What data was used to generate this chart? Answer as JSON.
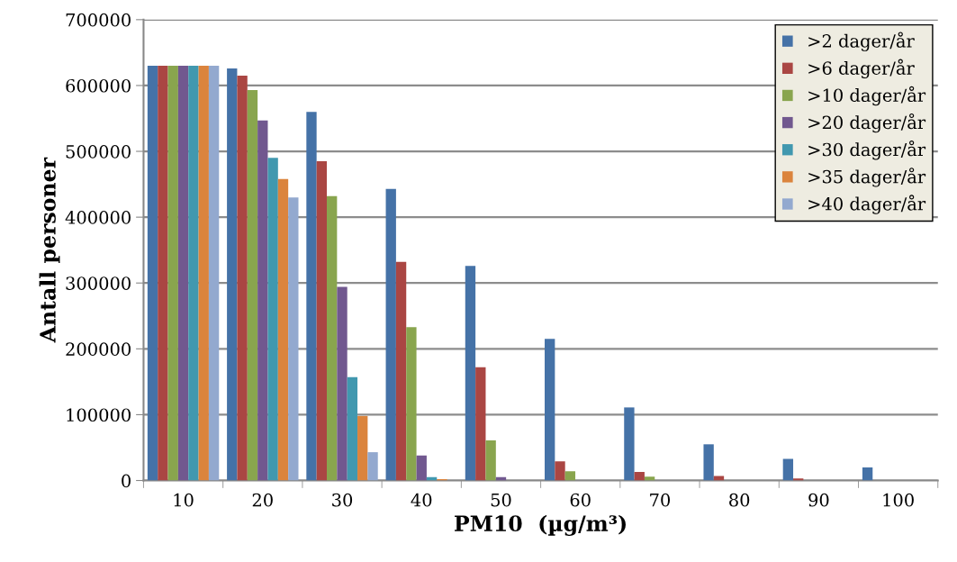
{
  "chart_data": {
    "type": "bar",
    "xlabel": "PM10  (µg/m³)",
    "ylabel": "Antall personer",
    "categories": [
      "10",
      "20",
      "30",
      "40",
      "50",
      "60",
      "70",
      "80",
      "90",
      "100"
    ],
    "series": [
      {
        "name": ">2 dager/år",
        "color": "#4572a7",
        "values": [
          630000,
          626000,
          560000,
          443000,
          326000,
          215000,
          111000,
          55000,
          33000,
          20000
        ]
      },
      {
        "name": ">6 dager/år",
        "color": "#aa4643",
        "values": [
          630000,
          615000,
          485000,
          332000,
          172000,
          29000,
          13000,
          7000,
          3000,
          null
        ]
      },
      {
        "name": ">10 dager/år",
        "color": "#89a54e",
        "values": [
          630000,
          593000,
          432000,
          233000,
          61000,
          14000,
          6000,
          null,
          0,
          0
        ]
      },
      {
        "name": ">20 dager/år",
        "color": "#71588f",
        "values": [
          630000,
          547000,
          294000,
          38000,
          5000,
          null,
          0,
          0,
          0,
          0
        ]
      },
      {
        "name": ">30 dager/år",
        "color": "#4198af",
        "values": [
          630000,
          490000,
          157000,
          5000,
          0,
          0,
          0,
          0,
          0,
          0
        ]
      },
      {
        "name": ">35 dager/år",
        "color": "#db843d",
        "values": [
          630000,
          458000,
          98000,
          2000,
          0,
          0,
          0,
          0,
          0,
          0
        ]
      },
      {
        "name": ">40 dager/år",
        "color": "#93a9cf",
        "values": [
          630000,
          430000,
          43000,
          0,
          0,
          0,
          0,
          0,
          0,
          0
        ]
      }
    ],
    "ylim": [
      0,
      700000
    ],
    "yticks": [
      0,
      100000,
      200000,
      300000,
      400000,
      500000,
      600000,
      700000
    ],
    "grid": "y",
    "legend": "top right"
  }
}
